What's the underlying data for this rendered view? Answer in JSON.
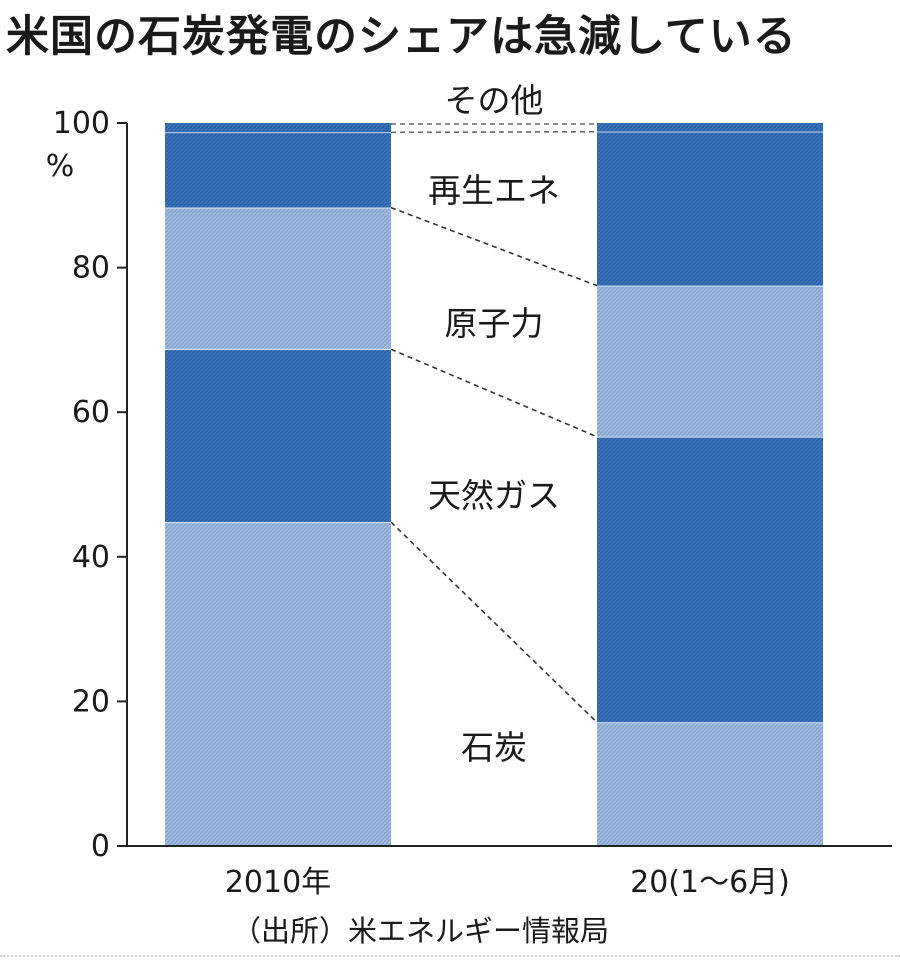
{
  "title": "米国の石炭発電のシェアは急減している",
  "source": "（出所）米エネルギー情報局",
  "colors": {
    "light": "#8aaad4",
    "dark": "#2c65ad",
    "connector": "#333333",
    "axis": "#222222"
  },
  "chart_data": {
    "type": "bar",
    "stacked": true,
    "categories": [
      "2010年",
      "20(1～6月)"
    ],
    "ylim": [
      0,
      100
    ],
    "yticks": [
      "0",
      "20",
      "40",
      "60",
      "80",
      "100"
    ],
    "yunit": "%",
    "grid": false,
    "series": [
      {
        "name": "石炭",
        "values": [
          44.8,
          17.1
        ],
        "shade": "light"
      },
      {
        "name": "天然ガス",
        "values": [
          23.9,
          39.5
        ],
        "shade": "dark"
      },
      {
        "name": "原子力",
        "values": [
          19.6,
          20.9
        ],
        "shade": "light"
      },
      {
        "name": "再生エネ",
        "values": [
          10.4,
          21.3
        ],
        "shade": "dark"
      },
      {
        "name": "その他",
        "values": [
          1.3,
          1.2
        ],
        "shade": "dark"
      }
    ]
  }
}
